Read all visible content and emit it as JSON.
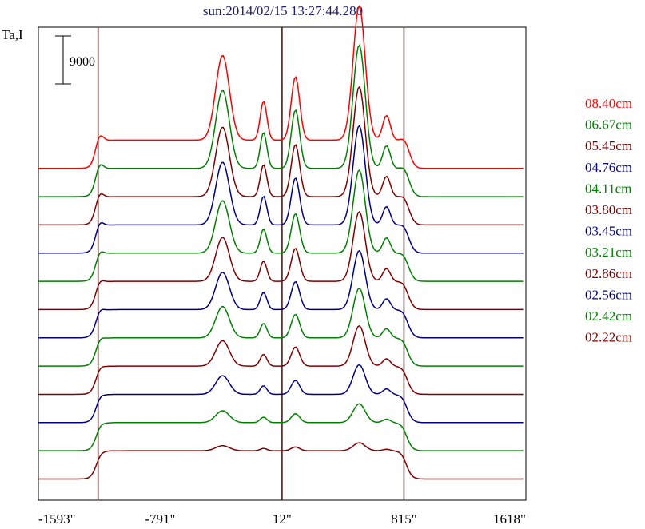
{
  "chart_data": {
    "type": "line",
    "title": "sun:2014/02/15 13:27:44.280",
    "ylabel": "Ta,I",
    "scale_bar_label": "9000",
    "x_tick_labels": [
      "-1593\"",
      "-791\"",
      "12\"",
      "815\"",
      "1618\""
    ],
    "x_ticks": [
      -1593,
      -791,
      12,
      815,
      1618
    ],
    "xlim": [
      -1593,
      1618
    ],
    "vertical_markers": [
      -1200,
      12,
      815
    ],
    "series": [
      {
        "name": "08.40cm",
        "color": "#ff0000",
        "offset": 38000,
        "peak": 1.0
      },
      {
        "name": "06.67cm",
        "color": "#008000",
        "offset": 34000,
        "peak": 0.92
      },
      {
        "name": "05.45cm",
        "color": "#800000",
        "offset": 30000,
        "peak": 0.82
      },
      {
        "name": "04.76cm",
        "color": "#000080",
        "offset": 26000,
        "peak": 0.74
      },
      {
        "name": "04.11cm",
        "color": "#008000",
        "offset": 22000,
        "peak": 0.62
      },
      {
        "name": "03.80cm",
        "color": "#800000",
        "offset": 18000,
        "peak": 0.52
      },
      {
        "name": "03.45cm",
        "color": "#000080",
        "offset": 14000,
        "peak": 0.44
      },
      {
        "name": "03.21cm",
        "color": "#008000",
        "offset": 10000,
        "peak": 0.37
      },
      {
        "name": "02.86cm",
        "color": "#800000",
        "offset": 6000,
        "peak": 0.3
      },
      {
        "name": "02.56cm",
        "color": "#000080",
        "offset": 2000,
        "peak": 0.22
      },
      {
        "name": "02.42cm",
        "color": "#008000",
        "offset": -2000,
        "peak": 0.14
      },
      {
        "name": "02.22cm",
        "color": "#800000",
        "offset": -6000,
        "peak": 0.06
      }
    ],
    "ylim": [
      -9000,
      58000
    ],
    "grid": false,
    "legend_position": "right"
  }
}
